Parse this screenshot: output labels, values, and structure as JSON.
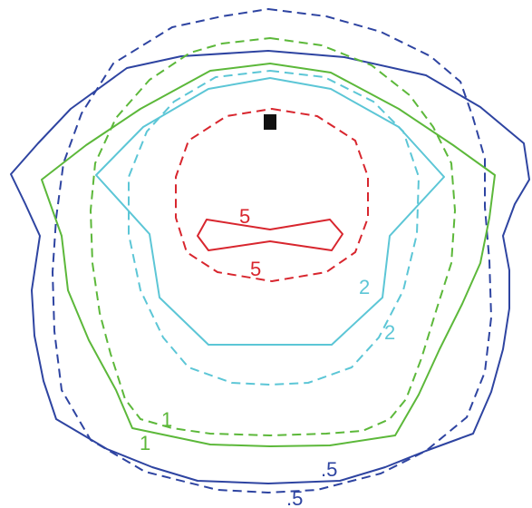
{
  "colors": {
    "navy": "#2e44a1",
    "green": "#5cb83a",
    "cyan": "#5cc6d6",
    "red": "#d8262e",
    "marker": "#111111"
  },
  "contours": [
    {
      "name": "navy-solid",
      "color": "navy",
      "style": "solid"
    },
    {
      "name": "navy-dashed",
      "color": "navy",
      "style": "dashed"
    },
    {
      "name": "green-solid",
      "color": "green",
      "style": "solid"
    },
    {
      "name": "green-dashed",
      "color": "green",
      "style": "dashed"
    },
    {
      "name": "cyan-solid",
      "color": "cyan",
      "style": "solid"
    },
    {
      "name": "cyan-dashed",
      "color": "cyan",
      "style": "dashed"
    },
    {
      "name": "red-dashed",
      "color": "red",
      "style": "dashed"
    },
    {
      "name": "red-solid",
      "color": "red",
      "style": "solid"
    }
  ],
  "labels": {
    "red_solid": "5",
    "red_dashed": "5",
    "cyan_solid": "2",
    "cyan_dashed": "2",
    "green_solid": "1",
    "green_dashed": "1",
    "navy_solid": ".5",
    "navy_dashed": ".5"
  }
}
